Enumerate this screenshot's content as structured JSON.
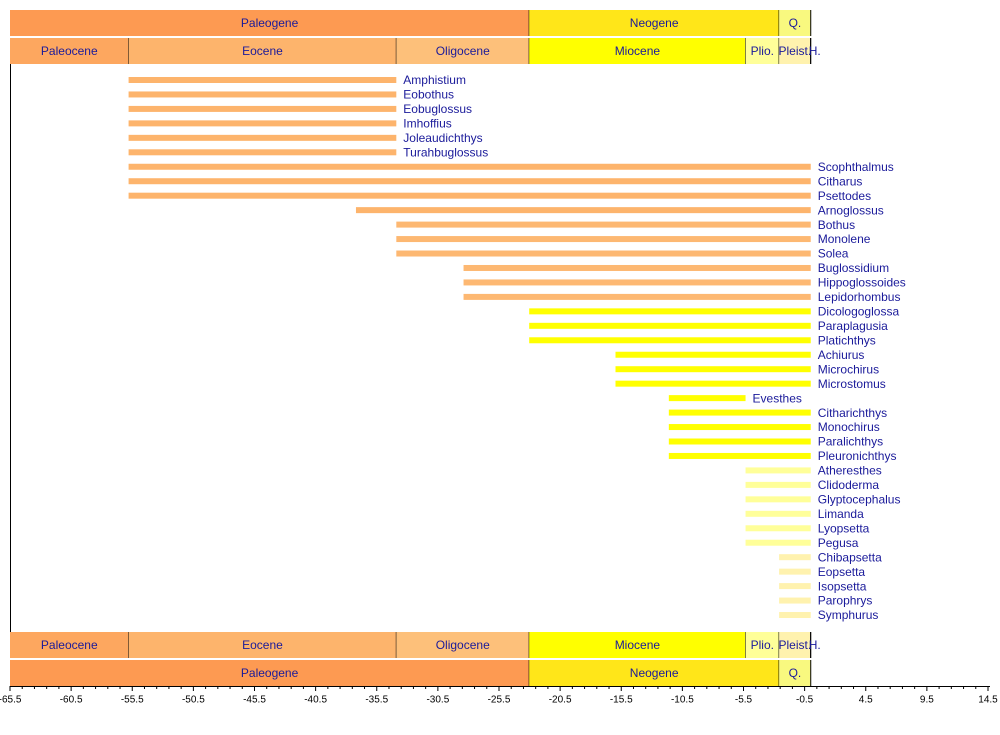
{
  "chart_data": {
    "type": "timeline",
    "xlim": [
      -65.5,
      14.5
    ],
    "xticks": [
      -65.5,
      -60.5,
      -55.5,
      -50.5,
      -45.5,
      -40.5,
      -35.5,
      -30.5,
      -25.5,
      -20.5,
      -15.5,
      -10.5,
      -5.5,
      -0.5,
      4.5,
      9.5,
      14.5
    ],
    "periods": [
      {
        "label": "Paleogene",
        "start": -65.5,
        "end": -23.03,
        "color": "#fd9a52"
      },
      {
        "label": "Neogene",
        "start": -23.03,
        "end": -2.588,
        "color": "#ffe619"
      },
      {
        "label": "Q.",
        "start": -2.588,
        "end": 0,
        "color": "#f9f97f"
      }
    ],
    "epochs": [
      {
        "label": "Paleocene",
        "start": -65.5,
        "end": -55.8,
        "color": "#fda75f"
      },
      {
        "label": "Eocene",
        "start": -55.8,
        "end": -33.9,
        "color": "#fdb46c"
      },
      {
        "label": "Oligocene",
        "start": -33.9,
        "end": -23.03,
        "color": "#fdc07a"
      },
      {
        "label": "Miocene",
        "start": -23.03,
        "end": -5.332,
        "color": "#ffff00"
      },
      {
        "label": "Plio.",
        "start": -5.332,
        "end": -2.588,
        "color": "#ffff99"
      },
      {
        "label": "Pleist.",
        "start": -2.588,
        "end": -0.0117,
        "color": "#fff2ae"
      },
      {
        "label": "H.",
        "start": -0.0117,
        "end": 0,
        "color": "#fef2e0"
      }
    ],
    "taxa": [
      {
        "name": "Amphistium",
        "start": -55.8,
        "end": -33.9,
        "color": "#fdb46c"
      },
      {
        "name": "Eobothus",
        "start": -55.8,
        "end": -33.9,
        "color": "#fdb46c"
      },
      {
        "name": "Eobuglossus",
        "start": -55.8,
        "end": -33.9,
        "color": "#fdb46c"
      },
      {
        "name": "Imhoffius",
        "start": -55.8,
        "end": -33.9,
        "color": "#fdb46c"
      },
      {
        "name": "Joleaudichthys",
        "start": -55.8,
        "end": -33.9,
        "color": "#fdb46c"
      },
      {
        "name": "Turahbuglossus",
        "start": -55.8,
        "end": -33.9,
        "color": "#fdb46c"
      },
      {
        "name": "Scophthalmus",
        "start": -55.8,
        "end": 0,
        "color": "#fdb46c"
      },
      {
        "name": "Citharus",
        "start": -55.8,
        "end": 0,
        "color": "#fdb46c"
      },
      {
        "name": "Psettodes",
        "start": -55.8,
        "end": 0,
        "color": "#fdb46c"
      },
      {
        "name": "Arnoglossus",
        "start": -37.2,
        "end": 0,
        "color": "#fdb46c"
      },
      {
        "name": "Bothus",
        "start": -33.9,
        "end": 0,
        "color": "#fdb872"
      },
      {
        "name": "Monolene",
        "start": -33.9,
        "end": 0,
        "color": "#fdb872"
      },
      {
        "name": "Solea",
        "start": -33.9,
        "end": 0,
        "color": "#fdb872"
      },
      {
        "name": "Buglossidium",
        "start": -28.4,
        "end": 0,
        "color": "#fdb872"
      },
      {
        "name": "Hippoglossoides",
        "start": -28.4,
        "end": 0,
        "color": "#fdb872"
      },
      {
        "name": "Lepidorhombus",
        "start": -28.4,
        "end": 0,
        "color": "#fdb872"
      },
      {
        "name": "Dicologoglossa",
        "start": -23.03,
        "end": 0,
        "color": "#ffff00"
      },
      {
        "name": "Paraplagusia",
        "start": -23.03,
        "end": 0,
        "color": "#ffff00"
      },
      {
        "name": "Platichthys",
        "start": -23.03,
        "end": 0,
        "color": "#ffff00"
      },
      {
        "name": "Achiurus",
        "start": -15.97,
        "end": 0,
        "color": "#ffff00"
      },
      {
        "name": "Microchirus",
        "start": -15.97,
        "end": 0,
        "color": "#ffff00"
      },
      {
        "name": "Microstomus",
        "start": -15.97,
        "end": 0,
        "color": "#ffff00"
      },
      {
        "name": "Evesthes",
        "start": -11.608,
        "end": -5.332,
        "color": "#ffff00"
      },
      {
        "name": "Citharichthys",
        "start": -11.608,
        "end": 0,
        "color": "#ffff00"
      },
      {
        "name": "Monochirus",
        "start": -11.608,
        "end": 0,
        "color": "#ffff00"
      },
      {
        "name": "Paralichthys",
        "start": -11.608,
        "end": 0,
        "color": "#ffff00"
      },
      {
        "name": "Pleuronichthys",
        "start": -11.608,
        "end": 0,
        "color": "#ffff00"
      },
      {
        "name": "Atheresthes",
        "start": -5.332,
        "end": 0,
        "color": "#ffff99"
      },
      {
        "name": "Clidoderma",
        "start": -5.332,
        "end": 0,
        "color": "#ffff99"
      },
      {
        "name": "Glyptocephalus",
        "start": -5.332,
        "end": 0,
        "color": "#ffff99"
      },
      {
        "name": "Limanda",
        "start": -5.332,
        "end": 0,
        "color": "#ffff99"
      },
      {
        "name": "Lyopsetta",
        "start": -5.332,
        "end": 0,
        "color": "#ffff99"
      },
      {
        "name": "Pegusa",
        "start": -5.332,
        "end": 0,
        "color": "#ffff99"
      },
      {
        "name": "Chibapsetta",
        "start": -2.588,
        "end": 0,
        "color": "#fff2ae"
      },
      {
        "name": "Eopsetta",
        "start": -2.588,
        "end": 0,
        "color": "#fff2ae"
      },
      {
        "name": "Isopsetta",
        "start": -2.588,
        "end": 0,
        "color": "#fff2ae"
      },
      {
        "name": "Parophrys",
        "start": -2.588,
        "end": 0,
        "color": "#fff2ae"
      },
      {
        "name": "Symphurus",
        "start": -2.588,
        "end": 0,
        "color": "#fff2ae"
      }
    ]
  }
}
